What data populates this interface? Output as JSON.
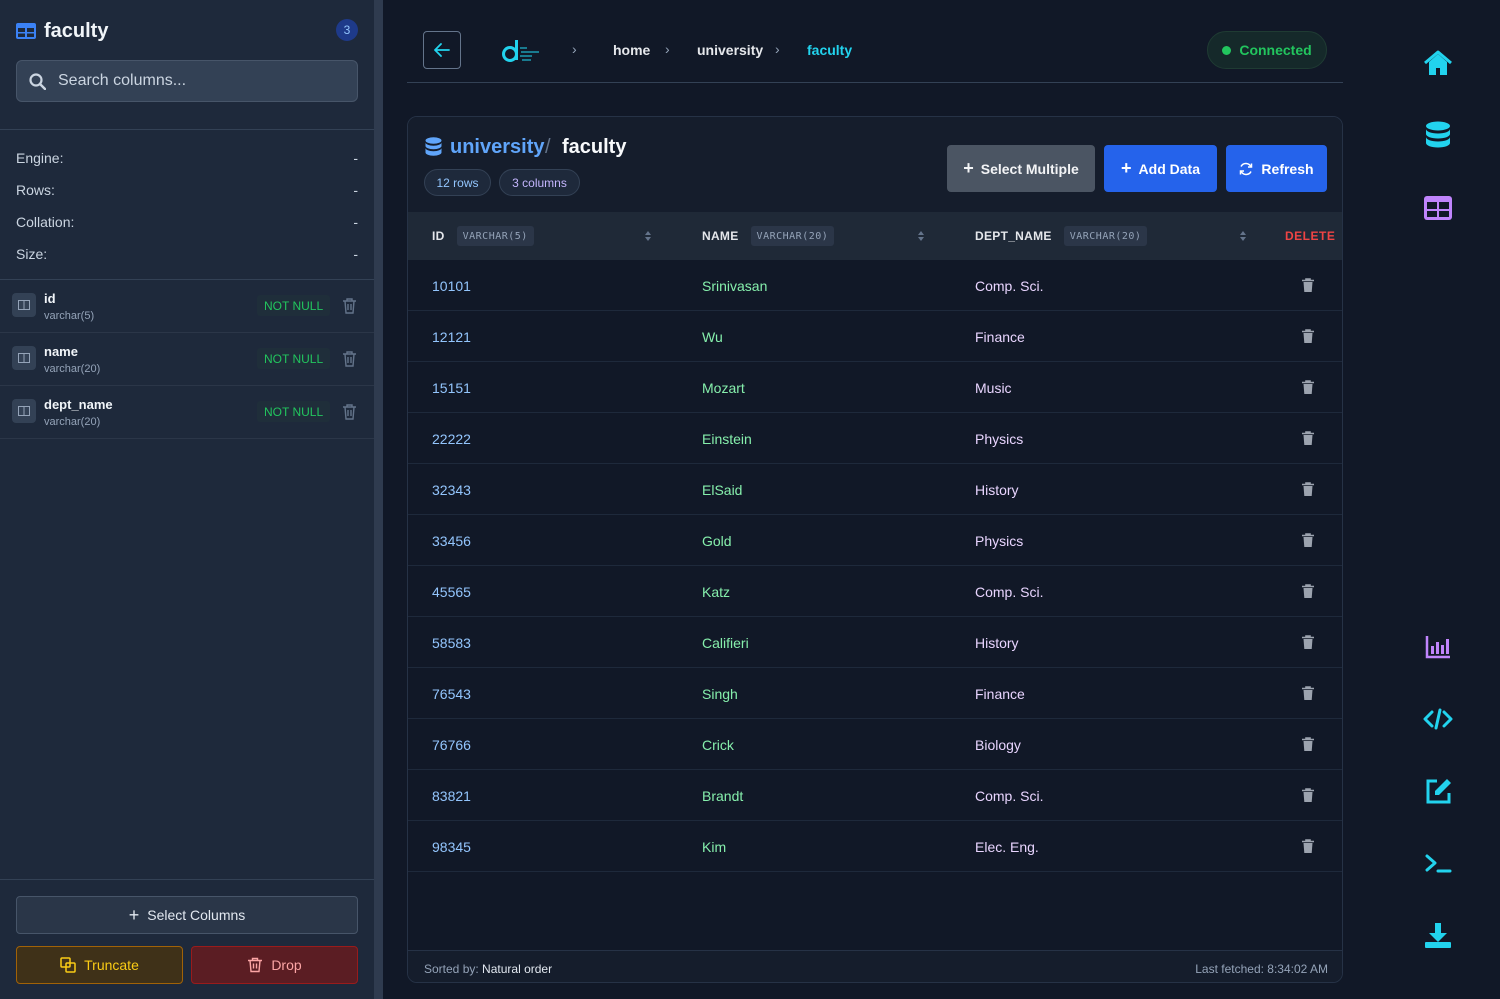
{
  "sidebar": {
    "title": "faculty",
    "count": "3",
    "search_placeholder": "Search columns...",
    "meta": [
      {
        "label": "Engine:",
        "value": "-"
      },
      {
        "label": "Rows:",
        "value": "-"
      },
      {
        "label": "Collation:",
        "value": "-"
      },
      {
        "label": "Size:",
        "value": "-"
      }
    ],
    "columns": [
      {
        "name": "id",
        "type": "varchar(5)",
        "constraint": "NOT NULL"
      },
      {
        "name": "name",
        "type": "varchar(20)",
        "constraint": "NOT NULL"
      },
      {
        "name": "dept_name",
        "type": "varchar(20)",
        "constraint": "NOT NULL"
      }
    ],
    "select_columns_label": "Select Columns",
    "truncate_label": "Truncate",
    "drop_label": "Drop"
  },
  "topbar": {
    "breadcrumbs": [
      "home",
      "university",
      "faculty"
    ],
    "status": "Connected"
  },
  "card": {
    "db": "university",
    "separator": "/",
    "table": "faculty",
    "rows_pill": "12 rows",
    "cols_pill": "3 columns",
    "select_multiple_label": "Select Multiple",
    "add_data_label": "Add Data",
    "refresh_label": "Refresh",
    "headers": [
      {
        "name": "ID",
        "type": "VARCHAR(5)"
      },
      {
        "name": "NAME",
        "type": "VARCHAR(20)"
      },
      {
        "name": "DEPT_NAME",
        "type": "VARCHAR(20)"
      }
    ],
    "delete_header": "DELETE",
    "rows": [
      {
        "id": "10101",
        "name": "Srinivasan",
        "dept": "Comp. Sci."
      },
      {
        "id": "12121",
        "name": "Wu",
        "dept": "Finance"
      },
      {
        "id": "15151",
        "name": "Mozart",
        "dept": "Music"
      },
      {
        "id": "22222",
        "name": "Einstein",
        "dept": "Physics"
      },
      {
        "id": "32343",
        "name": "ElSaid",
        "dept": "History"
      },
      {
        "id": "33456",
        "name": "Gold",
        "dept": "Physics"
      },
      {
        "id": "45565",
        "name": "Katz",
        "dept": "Comp. Sci."
      },
      {
        "id": "58583",
        "name": "Califieri",
        "dept": "History"
      },
      {
        "id": "76543",
        "name": "Singh",
        "dept": "Finance"
      },
      {
        "id": "76766",
        "name": "Crick",
        "dept": "Biology"
      },
      {
        "id": "83821",
        "name": "Brandt",
        "dept": "Comp. Sci."
      },
      {
        "id": "98345",
        "name": "Kim",
        "dept": "Elec. Eng."
      }
    ],
    "sorted_prefix": "Sorted by:",
    "sorted_value": "Natural order",
    "last_fetched": "Last fetched: 8:34:02 AM"
  },
  "rail": {
    "icons": [
      "home-icon",
      "database-icon",
      "table-icon",
      "chart-icon",
      "code-icon",
      "edit-icon",
      "terminal-icon",
      "download-icon"
    ]
  },
  "colors": {
    "accent_cyan": "#22d3ee",
    "accent_purple": "#c084fc",
    "primary_blue": "#2563eb",
    "success_green": "#22c55e",
    "danger_red": "#ef4444"
  }
}
